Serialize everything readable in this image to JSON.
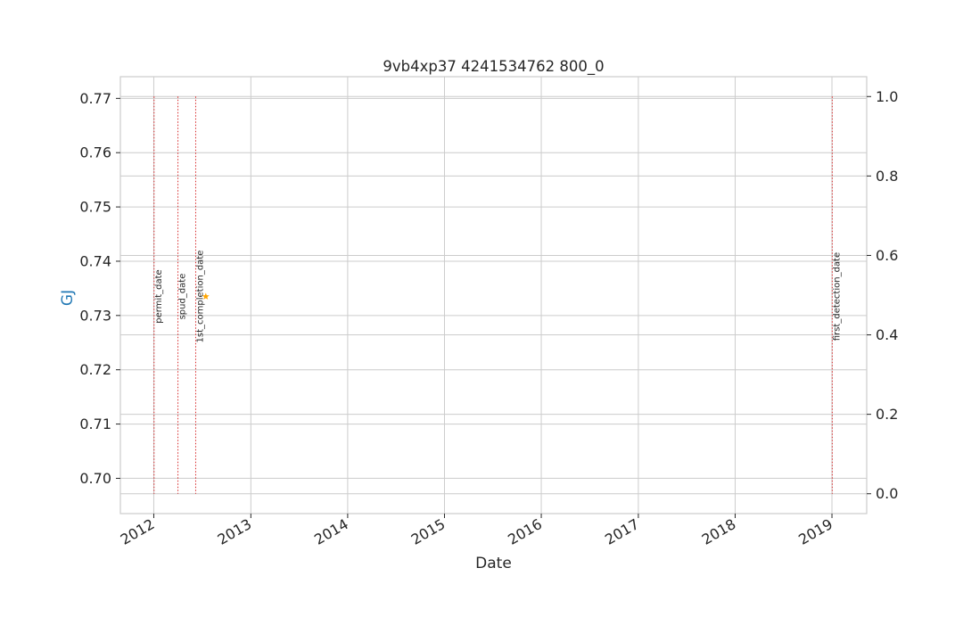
{
  "chart_data": {
    "type": "line",
    "title": "9vb4xp37 4241534762 800_0",
    "xlabel": "Date",
    "ylabel": "GJ",
    "ylabel_color": "#1f77b4",
    "xlim": [
      "2011-08-28",
      "2019-05-12"
    ],
    "ylim": [
      0.6935,
      0.774
    ],
    "yticks": [
      0.7,
      0.71,
      0.72,
      0.73,
      0.74,
      0.75,
      0.76,
      0.77
    ],
    "ytick_labels": [
      "0.70",
      "0.71",
      "0.72",
      "0.73",
      "0.74",
      "0.75",
      "0.76",
      "0.77"
    ],
    "y2lim": [
      -0.05,
      1.05
    ],
    "y2ticks": [
      0.0,
      0.2,
      0.4,
      0.6,
      0.8,
      1.0
    ],
    "y2tick_labels": [
      "0.0",
      "0.2",
      "0.4",
      "0.6",
      "0.8",
      "1.0"
    ],
    "xticks": [
      "2012-01-01",
      "2013-01-01",
      "2014-01-01",
      "2015-01-01",
      "2016-01-01",
      "2017-01-01",
      "2018-01-01",
      "2019-01-01"
    ],
    "xtick_labels": [
      "2012",
      "2013",
      "2014",
      "2015",
      "2016",
      "2017",
      "2018",
      "2019"
    ],
    "grid": true,
    "events": [
      {
        "label": "permit_date",
        "date": "2012-01-02"
      },
      {
        "label": "spud_date",
        "date": "2012-04-01"
      },
      {
        "label": "1st_completion_date",
        "date": "2012-06-07"
      },
      {
        "label": "first_detection_date",
        "date": "2019-01-02"
      }
    ],
    "event_color": "#d62728",
    "marker": {
      "shape": "star",
      "date": "2012-07-15",
      "y": 0.7335,
      "color": "#ffa500"
    }
  }
}
